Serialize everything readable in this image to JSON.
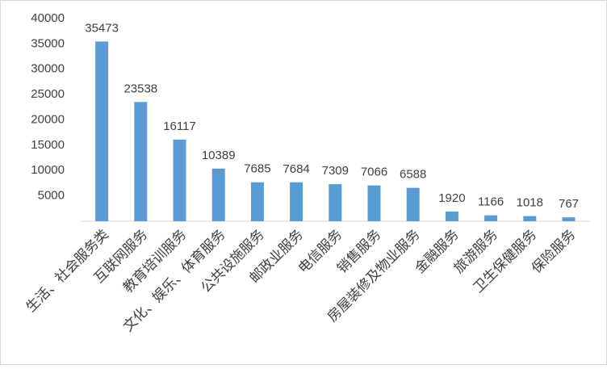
{
  "chart_data": {
    "type": "bar",
    "categories": [
      "生活、社会服务类",
      "互联网服务",
      "教育培训服务",
      "文化、娱乐、体育服务",
      "公共设施服务",
      "邮政业服务",
      "电信服务",
      "销售服务",
      "房屋装修及物业服务",
      "金融服务",
      "旅游服务",
      "卫生保健服务",
      "保险服务"
    ],
    "values": [
      35473,
      23538,
      16117,
      10389,
      7685,
      7684,
      7309,
      7066,
      6588,
      1920,
      1166,
      1018,
      767
    ],
    "color": "#5b9bd5",
    "ylim": [
      0,
      40000
    ],
    "yticks": [
      5000,
      10000,
      15000,
      20000,
      25000,
      30000,
      35000,
      40000
    ],
    "grid": false
  }
}
